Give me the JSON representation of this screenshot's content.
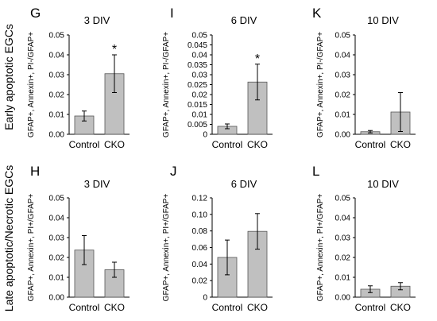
{
  "row_labels": [
    "Early apoptotic EGCs",
    "Late apoptotic/Necrotic EGCs"
  ],
  "chart_data": [
    {
      "type": "bar",
      "panel": "G",
      "title": "3 DIV",
      "ylabel": "GFAP+, Annexin+, PI-/GFAP+",
      "categories": [
        "Control",
        "CKO"
      ],
      "values": [
        0.0092,
        0.0305
      ],
      "errors": [
        0.0025,
        0.0095
      ],
      "significance": [
        "",
        "*"
      ],
      "ylim": [
        0,
        0.05
      ],
      "yticks": [
        "0.00",
        "0.01",
        "0.02",
        "0.03",
        "0.04",
        "0.05"
      ]
    },
    {
      "type": "bar",
      "panel": "I",
      "title": "6 DIV",
      "ylabel": "GFAP+, Annexin+, PI-/GFAP+",
      "categories": [
        "Control",
        "CKO"
      ],
      "values": [
        0.004,
        0.0263
      ],
      "errors": [
        0.0012,
        0.009
      ],
      "significance": [
        "",
        "*"
      ],
      "ylim": [
        0,
        0.05
      ],
      "yticks": [
        "0",
        "0.005",
        "0.01",
        "0.015",
        "0.02",
        "0.025",
        "0.03",
        "0.035",
        "0.04",
        "0.045",
        "0.05"
      ]
    },
    {
      "type": "bar",
      "panel": "K",
      "title": "10 DIV",
      "ylabel": "GFAP+, Annexin+, PI-/GFAP+",
      "categories": [
        "Control",
        "CKO"
      ],
      "values": [
        0.0013,
        0.0112
      ],
      "errors": [
        0.0006,
        0.0098
      ],
      "significance": [
        "",
        ""
      ],
      "ylim": [
        0,
        0.05
      ],
      "yticks": [
        "0.00",
        "0.01",
        "0.02",
        "0.03",
        "0.04",
        "0.05"
      ]
    },
    {
      "type": "bar",
      "panel": "H",
      "title": "3 DIV",
      "ylabel": "GFAP+, Annexin+, PI+/GFAP+",
      "categories": [
        "Control",
        "CKO"
      ],
      "values": [
        0.0237,
        0.0138
      ],
      "errors": [
        0.0073,
        0.0038
      ],
      "significance": [
        "",
        ""
      ],
      "ylim": [
        0,
        0.05
      ],
      "yticks": [
        "0.00",
        "0.01",
        "0.02",
        "0.03",
        "0.04",
        "0.05"
      ]
    },
    {
      "type": "bar",
      "panel": "J",
      "title": "6 DIV",
      "ylabel": "GFAP+, Annexin+, PI+/GFAP+",
      "categories": [
        "Control",
        "CKO"
      ],
      "values": [
        0.048,
        0.0795
      ],
      "errors": [
        0.021,
        0.0215
      ],
      "significance": [
        "",
        ""
      ],
      "ylim": [
        0,
        0.12
      ],
      "yticks": [
        "0",
        "0.02",
        "0.04",
        "0.06",
        "0.08",
        "0.10",
        "0.12"
      ]
    },
    {
      "type": "bar",
      "panel": "L",
      "title": "10 DIV",
      "ylabel": "GFAP+, Annexin+, PI+/GFAP+",
      "categories": [
        "Control",
        "CKO"
      ],
      "values": [
        0.004,
        0.0055
      ],
      "errors": [
        0.0017,
        0.0018
      ],
      "significance": [
        "",
        ""
      ],
      "ylim": [
        0,
        0.05
      ],
      "yticks": [
        "0.00",
        "0.01",
        "0.02",
        "0.03",
        "0.04",
        "0.05"
      ]
    }
  ]
}
